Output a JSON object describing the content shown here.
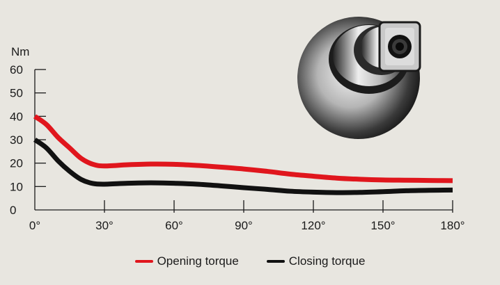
{
  "chart_data": {
    "type": "line",
    "ylabel": "Nm",
    "xlabel": "",
    "ylim": [
      0,
      60
    ],
    "xlim": [
      0,
      180
    ],
    "x_ticks": [
      0,
      30,
      60,
      90,
      120,
      150,
      180
    ],
    "x_tick_labels": [
      "0°",
      "30°",
      "60°",
      "90°",
      "120°",
      "150°",
      "180°"
    ],
    "y_ticks": [
      0,
      10,
      20,
      30,
      40,
      50,
      60
    ],
    "y_tick_labels": [
      "0",
      "10",
      "20",
      "30",
      "40",
      "50",
      "60"
    ],
    "grid": false,
    "legend_position": "bottom-center",
    "series": [
      {
        "name": "Opening torque",
        "color": "#e0161d",
        "x": [
          0,
          5,
          10,
          15,
          20,
          25,
          30,
          40,
          50,
          60,
          70,
          80,
          90,
          100,
          110,
          120,
          130,
          140,
          150,
          160,
          170,
          180
        ],
        "values": [
          40,
          36.5,
          31,
          26.5,
          22,
          19.5,
          18.8,
          19.3,
          19.6,
          19.5,
          19.0,
          18.3,
          17.5,
          16.5,
          15.3,
          14.4,
          13.6,
          13.1,
          12.8,
          12.7,
          12.6,
          12.5
        ]
      },
      {
        "name": "Closing torque",
        "color": "#111111",
        "x": [
          0,
          5,
          10,
          15,
          20,
          25,
          30,
          40,
          50,
          60,
          70,
          80,
          90,
          100,
          110,
          120,
          130,
          140,
          150,
          160,
          170,
          180
        ],
        "values": [
          30,
          26.5,
          21,
          16.5,
          13,
          11.3,
          11.0,
          11.4,
          11.6,
          11.4,
          11.0,
          10.3,
          9.5,
          8.8,
          8.0,
          7.6,
          7.4,
          7.5,
          7.8,
          8.2,
          8.4,
          8.5
        ]
      }
    ]
  }
}
